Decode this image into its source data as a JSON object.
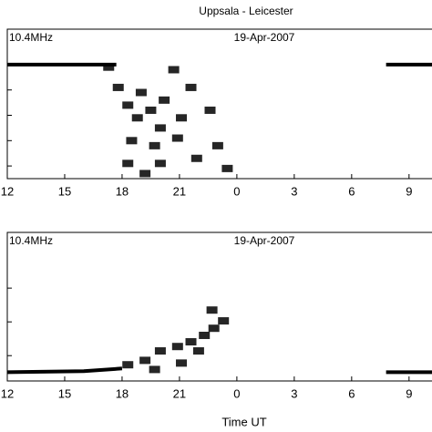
{
  "chart_data": [
    {
      "type": "scatter",
      "title": "Uppsala - Leicester",
      "annotations": [
        "10.4MHz",
        "19-Apr-2007"
      ],
      "xlim": [
        12,
        34.2
      ],
      "ylim": [
        0.5,
        6.4
      ],
      "xticks": [
        12,
        15,
        18,
        21,
        {
          "value": 24,
          "label": "0"
        },
        {
          "value": 27,
          "label": "3"
        },
        {
          "value": 30,
          "label": "6"
        },
        {
          "value": 33,
          "label": "9"
        }
      ],
      "yticks": [
        1,
        2,
        3,
        4,
        5
      ],
      "line": {
        "color": "#000000",
        "x": [
          12,
          17.7,
          17.8,
          31.8,
          34.2
        ],
        "values": [
          5,
          5,
          null,
          5,
          5
        ]
      },
      "series": [
        {
          "color": "#000000",
          "x": [
            17.3,
            17.8,
            19.0,
            18.3,
            19.5,
            20.7,
            20.2,
            21.6,
            18.8,
            20.0,
            21.1,
            22.6,
            18.5,
            19.7,
            20.9,
            23.0,
            18.3,
            20.0,
            21.9,
            23.5,
            19.2
          ],
          "values": [
            4.9,
            4.1,
            3.9,
            3.4,
            3.2,
            4.8,
            3.6,
            4.1,
            2.9,
            2.5,
            2.9,
            3.2,
            2.0,
            1.8,
            2.1,
            1.8,
            1.1,
            1.1,
            1.3,
            0.9,
            0.7
          ]
        }
      ]
    },
    {
      "type": "scatter",
      "annotations": [
        "10.4MHz",
        "19-Apr-2007"
      ],
      "xlabel": "Time UT",
      "xlim": [
        12,
        34.2
      ],
      "ylim": [
        0.25,
        4.65
      ],
      "xticks": [
        12,
        15,
        18,
        21,
        {
          "value": 24,
          "label": "0"
        },
        {
          "value": 27,
          "label": "3"
        },
        {
          "value": 30,
          "label": "6"
        },
        {
          "value": 33,
          "label": "9"
        }
      ],
      "yticks": [
        1,
        2,
        3
      ],
      "line": {
        "color": "#000000",
        "x": [
          12,
          16,
          18,
          18.1,
          31.8,
          34.2
        ],
        "values": [
          0.51,
          0.54,
          0.62,
          null,
          0.51,
          0.51
        ]
      },
      "series": [
        {
          "color": "#000000",
          "x": [
            18.3,
            19.2,
            20.0,
            20.9,
            21.6,
            22.3,
            22.8,
            23.3,
            22.7,
            19.7,
            21.1,
            22.0
          ],
          "values": [
            0.73,
            0.86,
            1.14,
            1.27,
            1.41,
            1.6,
            1.81,
            2.03,
            2.35,
            0.59,
            0.78,
            1.14
          ]
        }
      ]
    }
  ]
}
